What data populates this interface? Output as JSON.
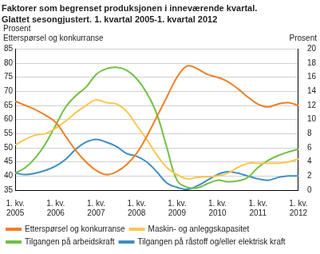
{
  "chart_data": {
    "type": "line",
    "title": "Faktorer som begrenset produksjonen i inneværende kvartal.",
    "subtitle": "Glattet sesongjustert. 1. kvartal 2005-1. kvartal 2012",
    "ylabel": "Prosent\nEtterspørsel og konkurranse",
    "y2label": "Prosent",
    "categories": [
      "1. kv. 2005",
      null,
      null,
      null,
      "1. kv. 2006",
      null,
      null,
      null,
      "1. kv. 2007",
      null,
      null,
      null,
      "1. kv. 2008",
      null,
      null,
      null,
      "1. kv. 2009",
      null,
      null,
      null,
      "1. kv. 2010",
      null,
      null,
      null,
      "1. kv. 2011",
      null,
      null,
      null,
      "1. kv. 2012"
    ],
    "series": [
      {
        "name": "Etterspørsel og konkurranse",
        "color": "#f07e26",
        "axis": "y",
        "values": [
          66.5,
          65,
          63.5,
          61.5,
          59,
          54,
          49,
          45,
          42,
          40.5,
          41.5,
          44,
          48,
          54,
          61,
          68,
          75,
          79,
          78,
          76,
          75,
          73.5,
          71,
          68,
          65.5,
          64.5,
          65.5,
          66,
          65
        ]
      },
      {
        "name": "Maskin- og anleggskapasitet",
        "color": "#f9c74f",
        "axis": "y2",
        "values": [
          6.4,
          7.2,
          7.8,
          8.0,
          8.8,
          9.8,
          11.0,
          12.0,
          12.8,
          12.4,
          12.2,
          11.2,
          9.2,
          7.2,
          5.0,
          3.2,
          2.2,
          1.6,
          1.8,
          1.9,
          2.0,
          2.4,
          3.2,
          3.8,
          3.8,
          3.8,
          3.8,
          4.0,
          4.4
        ]
      },
      {
        "name": "Tilgangen på arbeidskraft",
        "color": "#72bf44",
        "axis": "y2",
        "values": [
          2.4,
          3.2,
          4.6,
          6.6,
          9.2,
          11.8,
          13.4,
          14.6,
          16.4,
          17.2,
          17.4,
          17.0,
          15.8,
          13.8,
          10.8,
          6.0,
          1.4,
          0.4,
          0.3,
          0.9,
          1.4,
          1.2,
          1.3,
          1.8,
          3.2,
          4.2,
          4.9,
          5.4,
          5.8
        ]
      },
      {
        "name": "Tilgangen på råstoff og/eller elektrisk kraft",
        "color": "#3e8ec6",
        "axis": "y2",
        "values": [
          2.4,
          2.2,
          2.4,
          2.8,
          3.4,
          4.4,
          5.8,
          6.8,
          7.2,
          6.8,
          6.2,
          5.2,
          4.8,
          4.0,
          2.6,
          1.0,
          0.4,
          0.1,
          0.6,
          1.4,
          2.2,
          2.6,
          2.4,
          2.0,
          1.6,
          1.4,
          1.8,
          2.0,
          2.0
        ]
      }
    ],
    "ylim": [
      35,
      85
    ],
    "yticks": [
      35,
      40,
      45,
      50,
      55,
      60,
      65,
      70,
      75,
      80,
      85
    ],
    "y2lim": [
      0,
      20
    ],
    "y2ticks": [
      0,
      2,
      4,
      6,
      8,
      10,
      12,
      14,
      16,
      18,
      20
    ],
    "grid": true,
    "legend": "bottom"
  }
}
